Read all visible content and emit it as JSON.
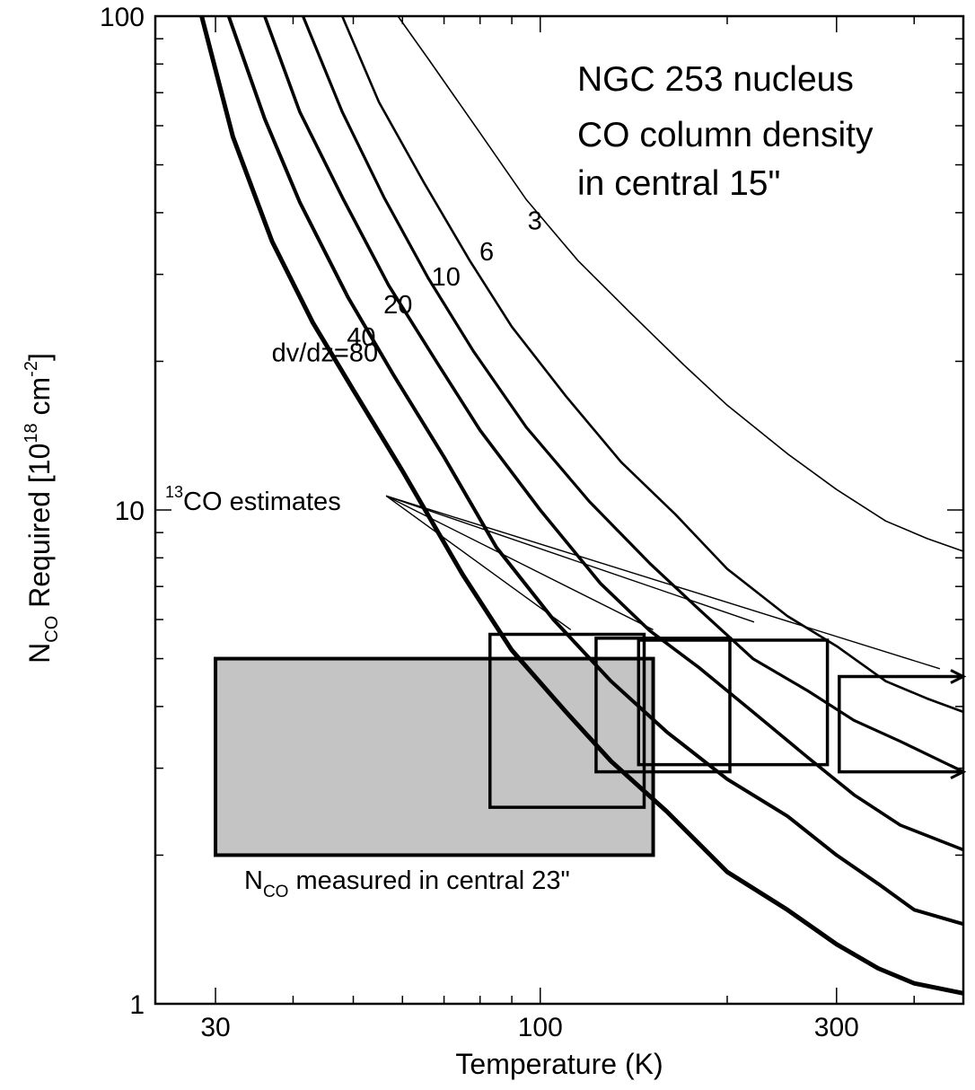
{
  "chart_data": {
    "type": "line",
    "title_lines": [
      "NGC 253 nucleus",
      "CO column density",
      "in central 15\""
    ],
    "xlabel": "Temperature (K)",
    "ylabel_parts": {
      "n": "N",
      "sub": "CO",
      "rest": " Required [10",
      "sup": "18",
      "unit": " cm",
      "unit_sup": "-2",
      "close": "]"
    },
    "xscale": "log",
    "yscale": "log",
    "xlim": [
      24,
      480
    ],
    "ylim": [
      1,
      100
    ],
    "x_ticks": [
      {
        "value": 30,
        "label": "30"
      },
      {
        "value": 100,
        "label": "100"
      },
      {
        "value": 300,
        "label": "300"
      }
    ],
    "y_ticks": [
      {
        "value": 1,
        "label": "1"
      },
      {
        "value": 10,
        "label": "10"
      },
      {
        "value": 100,
        "label": "100"
      }
    ],
    "series": [
      {
        "name": "dv/dz=80",
        "label": "dv/dz=80",
        "label_at": [
          45,
          20
        ],
        "points": [
          [
            28.5,
            100
          ],
          [
            32,
            57
          ],
          [
            37,
            35
          ],
          [
            43,
            24
          ],
          [
            50,
            17.5
          ],
          [
            60,
            12
          ],
          [
            75,
            7.4
          ],
          [
            90,
            5.2
          ],
          [
            110,
            3.9
          ],
          [
            130,
            3.1
          ],
          [
            160,
            2.45
          ],
          [
            200,
            1.85
          ],
          [
            250,
            1.55
          ],
          [
            300,
            1.32
          ],
          [
            350,
            1.18
          ],
          [
            400,
            1.1
          ],
          [
            480,
            1.05
          ]
        ]
      },
      {
        "name": "40",
        "label": "40",
        "label_at": [
          51.5,
          21.5
        ],
        "points": [
          [
            31.5,
            100
          ],
          [
            36,
            62
          ],
          [
            41,
            42
          ],
          [
            49,
            27
          ],
          [
            58,
            18.8
          ],
          [
            70,
            12.8
          ],
          [
            85,
            8.4
          ],
          [
            105,
            6.0
          ],
          [
            130,
            4.5
          ],
          [
            160,
            3.55
          ],
          [
            200,
            2.85
          ],
          [
            250,
            2.4
          ],
          [
            300,
            2.0
          ],
          [
            350,
            1.75
          ],
          [
            400,
            1.55
          ],
          [
            480,
            1.45
          ]
        ]
      },
      {
        "name": "20",
        "label": "20",
        "label_at": [
          59,
          25
        ],
        "points": [
          [
            36,
            100
          ],
          [
            41,
            64
          ],
          [
            48,
            43
          ],
          [
            57,
            28.5
          ],
          [
            68,
            20
          ],
          [
            80,
            14.5
          ],
          [
            100,
            10.0
          ],
          [
            125,
            7.1
          ],
          [
            150,
            5.7
          ],
          [
            180,
            4.8
          ],
          [
            220,
            3.9
          ],
          [
            270,
            3.15
          ],
          [
            320,
            2.65
          ],
          [
            380,
            2.3
          ],
          [
            480,
            2.05
          ]
        ]
      },
      {
        "name": "10",
        "label": "10",
        "label_at": [
          70.5,
          28.5
        ],
        "points": [
          [
            41.5,
            100
          ],
          [
            48,
            64
          ],
          [
            56,
            43
          ],
          [
            66,
            29.5
          ],
          [
            78,
            21
          ],
          [
            95,
            14.7
          ],
          [
            120,
            10.4
          ],
          [
            150,
            7.8
          ],
          [
            180,
            6.3
          ],
          [
            220,
            5.0
          ],
          [
            270,
            4.3
          ],
          [
            320,
            3.75
          ],
          [
            380,
            3.4
          ],
          [
            480,
            2.95
          ]
        ]
      },
      {
        "name": "6",
        "label": "6",
        "label_at": [
          82,
          32
        ],
        "points": [
          [
            48,
            100
          ],
          [
            55,
            67
          ],
          [
            65,
            46
          ],
          [
            77,
            32
          ],
          [
            90,
            23.5
          ],
          [
            110,
            17
          ],
          [
            135,
            12.5
          ],
          [
            165,
            9.8
          ],
          [
            200,
            7.6
          ],
          [
            250,
            6.1
          ],
          [
            300,
            5.3
          ],
          [
            360,
            4.5
          ],
          [
            420,
            4.15
          ],
          [
            480,
            3.9
          ]
        ]
      },
      {
        "name": "3",
        "label": "3",
        "label_at": [
          98,
          37
        ],
        "points": [
          [
            59,
            100
          ],
          [
            66,
            82
          ],
          [
            80,
            58
          ],
          [
            95,
            42.5
          ],
          [
            115,
            32
          ],
          [
            140,
            25
          ],
          [
            170,
            19.7
          ],
          [
            200,
            16.3
          ],
          [
            250,
            13.0
          ],
          [
            300,
            11.0
          ],
          [
            360,
            9.5
          ],
          [
            420,
            8.75
          ],
          [
            480,
            8.25
          ]
        ]
      }
    ],
    "shaded_box": {
      "x": [
        30,
        152
      ],
      "y": [
        2.0,
        5.0
      ],
      "color": "#c4c4c4",
      "label_parts": {
        "n": "N",
        "sub": "CO",
        "rest": " measured in central 23\""
      }
    },
    "estimate_boxes": [
      {
        "x": [
          83,
          147
        ],
        "y": [
          2.5,
          5.6
        ]
      },
      {
        "x": [
          123,
          202
        ],
        "y": [
          2.95,
          5.5
        ]
      },
      {
        "x": [
          144,
          290
        ],
        "y": [
          3.05,
          5.45
        ]
      },
      {
        "x": [
          303,
          480
        ],
        "y": [
          2.95,
          4.6
        ],
        "open_right": true
      }
    ],
    "c13_annotation": {
      "text_sup": "13",
      "text": "CO estimates",
      "origin": [
        62,
        10.5
      ],
      "targets": [
        [
          112,
          5.72
        ],
        [
          152,
          5.72
        ],
        [
          221,
          5.93
        ],
        [
          440,
          4.77
        ]
      ]
    }
  }
}
